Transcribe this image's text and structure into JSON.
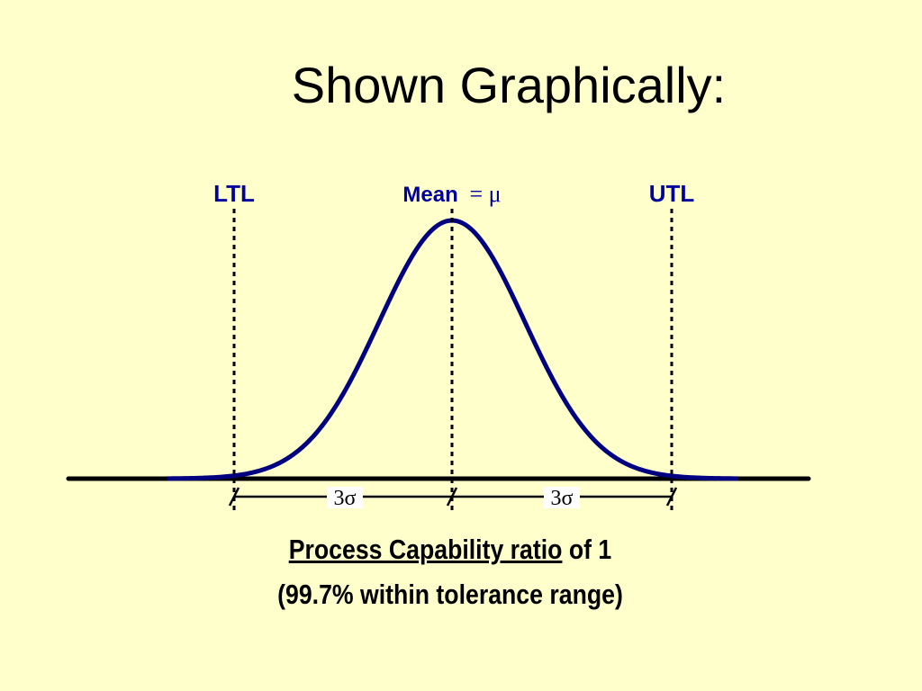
{
  "title": "Shown Graphically:",
  "colors": {
    "background": "#FFFFCC",
    "curve": "#000080",
    "label": "#0000A0",
    "axis": "#000000"
  },
  "labels": {
    "ltl": "LTL",
    "mean_word": "Mean",
    "mean_symbol": "= μ",
    "utl": "UTL",
    "left_span": "3σ",
    "right_span": "3σ"
  },
  "caption": {
    "line1_underlined": "Process Capability ratio",
    "line1_rest": " of 1",
    "line2": "(99.7% within tolerance range)"
  }
}
